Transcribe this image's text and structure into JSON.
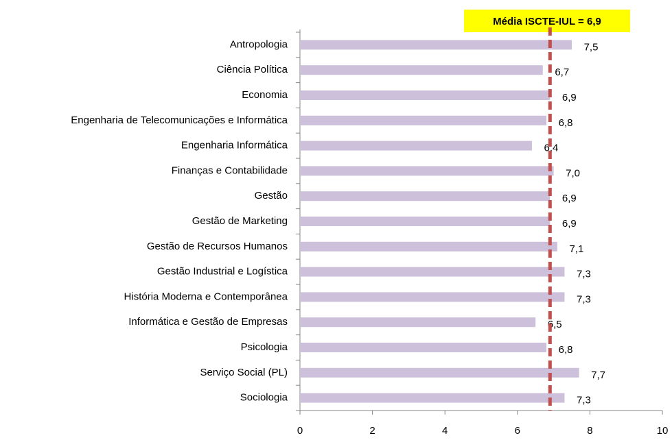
{
  "chart_data": {
    "type": "bar",
    "orientation": "horizontal",
    "categories": [
      "Antropologia",
      "Ciência Política",
      "Economia",
      "Engenharia de Telecomunicações e Informática",
      "Engenharia Informática",
      "Finanças e Contabilidade",
      "Gestão",
      "Gestão de Marketing",
      "Gestão de Recursos Humanos",
      "Gestão Industrial e Logística",
      "História Moderna e Contemporânea",
      "Informática e Gestão de Empresas",
      "Psicologia",
      "Serviço Social (PL)",
      "Sociologia"
    ],
    "values": [
      7.5,
      6.7,
      6.9,
      6.8,
      6.4,
      7.0,
      6.9,
      6.9,
      7.1,
      7.3,
      7.3,
      6.5,
      6.8,
      7.7,
      7.3
    ],
    "value_labels": [
      "7,5",
      "6,7",
      "6,9",
      "6,8",
      "6,4",
      "7,0",
      "6,9",
      "6,9",
      "7,1",
      "7,3",
      "7,3",
      "6,5",
      "6,8",
      "7,7",
      "7,3"
    ],
    "color": "#ccc0da",
    "xlim": [
      0,
      10
    ],
    "xticks": [
      0,
      2,
      4,
      6,
      8,
      10
    ],
    "reference_line": {
      "value": 6.9,
      "label": "Média ISCTE-IUL = 6,9",
      "color": "#c0504d",
      "box_color": "#ffff00"
    }
  }
}
